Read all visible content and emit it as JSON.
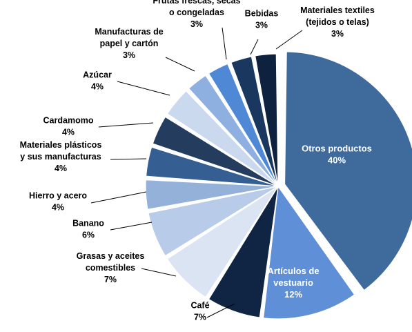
{
  "chart_data": {
    "type": "pie",
    "title": "",
    "slices": [
      {
        "label": [
          "Otros productos"
        ],
        "value": "40%",
        "percent": 40,
        "color": "#3f6a9c",
        "inside": true
      },
      {
        "label": [
          "Artículos de",
          "vestuario"
        ],
        "value": "12%",
        "percent": 12,
        "color": "#5e8fd7",
        "inside": true
      },
      {
        "label": [
          "Café"
        ],
        "value": "7%",
        "percent": 7,
        "color": "#0f2543"
      },
      {
        "label": [
          "Grasas y aceites",
          "comestibles"
        ],
        "value": "7%",
        "percent": 7,
        "color": "#dbe4f3"
      },
      {
        "label": [
          "Banano"
        ],
        "value": "6%",
        "percent": 6,
        "color": "#b8cbe8"
      },
      {
        "label": [
          "Hierro y acero"
        ],
        "value": "4%",
        "percent": 4,
        "color": "#94b1da"
      },
      {
        "label": [
          "Materiales plásticos",
          "y sus manufacturas"
        ],
        "value": "4%",
        "percent": 4,
        "color": "#355f92"
      },
      {
        "label": [
          "Cardamomo"
        ],
        "value": "4%",
        "percent": 4,
        "color": "#243d5f"
      },
      {
        "label": [
          "Azúcar"
        ],
        "value": "4%",
        "percent": 4,
        "color": "#cbd9ef"
      },
      {
        "label": [
          "Manufacturas de",
          "papel y cartón"
        ],
        "value": "3%",
        "percent": 3,
        "color": "#8eb0e0"
      },
      {
        "label": [
          "Frutas frescas, secas",
          "o congeladas"
        ],
        "value": "3%",
        "percent": 3,
        "color": "#4f89d6"
      },
      {
        "label": [
          "Bebidas"
        ],
        "value": "3%",
        "percent": 3,
        "color": "#1a3760"
      },
      {
        "label": [
          "Materiales textiles",
          "(tejidos o telas)"
        ],
        "value": "3%",
        "percent": 3,
        "color": "#0e2240"
      }
    ]
  }
}
